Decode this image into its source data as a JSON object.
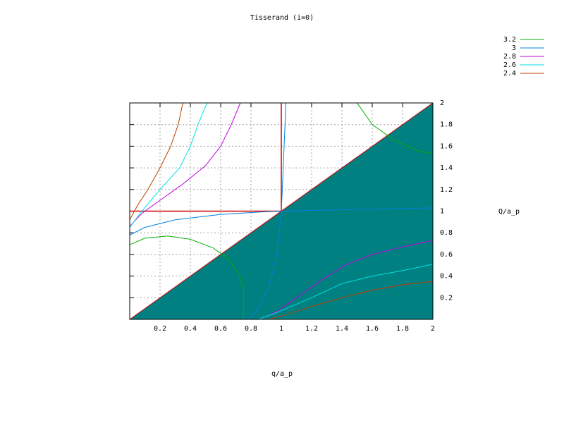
{
  "chart_data": {
    "type": "contour",
    "title": "Tisserand (i=0)",
    "x_label": "q/a_p",
    "y_label": "Q/a_p",
    "xlim": [
      0,
      2
    ],
    "ylim": [
      0,
      2
    ],
    "xticks": [
      0.2,
      0.4,
      0.6,
      0.8,
      1,
      1.2,
      1.4,
      1.6,
      1.8,
      2
    ],
    "yticks": [
      0.2,
      0.4,
      0.6,
      0.8,
      1,
      1.2,
      1.4,
      1.6,
      1.8,
      2
    ],
    "grid": true,
    "legend": "top-right",
    "series": [
      {
        "name": "3.2",
        "color": "#00b000",
        "x": [
          0,
          0.1,
          0.25,
          0.4,
          0.55,
          0.65,
          0.72,
          0.75,
          0.75,
          0.75,
          null,
          1.5,
          1.6,
          1.75,
          1.9,
          2
        ],
        "values": [
          0.69,
          0.75,
          0.77,
          0.74,
          0.66,
          0.56,
          0.42,
          0.28,
          0.15,
          0,
          null,
          2,
          1.8,
          1.65,
          1.56,
          1.53
        ]
      },
      {
        "name": "3",
        "color": "#0080e0",
        "x": [
          0,
          0.1,
          0.3,
          0.6,
          0.9,
          1,
          1.3,
          2,
          null,
          0.78,
          0.85,
          0.92,
          0.97,
          0.995,
          1,
          1.01,
          1.03
        ],
        "values": [
          0.78,
          0.85,
          0.92,
          0.97,
          0.995,
          1,
          1.01,
          1.03,
          null,
          0,
          0.1,
          0.3,
          0.6,
          0.9,
          1,
          1.3,
          2
        ]
      },
      {
        "name": "2.8",
        "color": "#c000e0",
        "x": [
          0.73,
          0.67,
          0.6,
          0.5,
          0.35,
          0.2,
          0.08,
          0,
          null,
          0.86,
          0.98,
          1.1,
          1.25,
          1.42,
          1.6,
          1.8,
          2
        ],
        "values": [
          2,
          1.8,
          1.6,
          1.42,
          1.25,
          1.1,
          0.98,
          0.86,
          null,
          0,
          0.08,
          0.2,
          0.35,
          0.5,
          0.6,
          0.67,
          0.73
        ]
      },
      {
        "name": "2.6",
        "color": "#00e0e0",
        "x": [
          0,
          0.08,
          0.2,
          0.33,
          0.4,
          0.45,
          0.51,
          null,
          0.85,
          1,
          1.2,
          1.4,
          1.6,
          1.8,
          2
        ],
        "values": [
          0.85,
          1,
          1.2,
          1.4,
          1.6,
          1.8,
          2,
          null,
          0,
          0.08,
          0.2,
          0.33,
          0.4,
          0.45,
          0.51
        ]
      },
      {
        "name": "2.4",
        "color": "#c04000",
        "x": [
          0,
          0.05,
          0.12,
          0.2,
          0.27,
          0.32,
          0.35,
          null,
          0.92,
          1.05,
          1.2,
          1.4,
          1.6,
          1.8,
          2
        ],
        "values": [
          0.92,
          1.05,
          1.2,
          1.4,
          1.6,
          1.8,
          2,
          null,
          0,
          0.05,
          0.12,
          0.2,
          0.27,
          0.32,
          0.35
        ]
      }
    ]
  }
}
